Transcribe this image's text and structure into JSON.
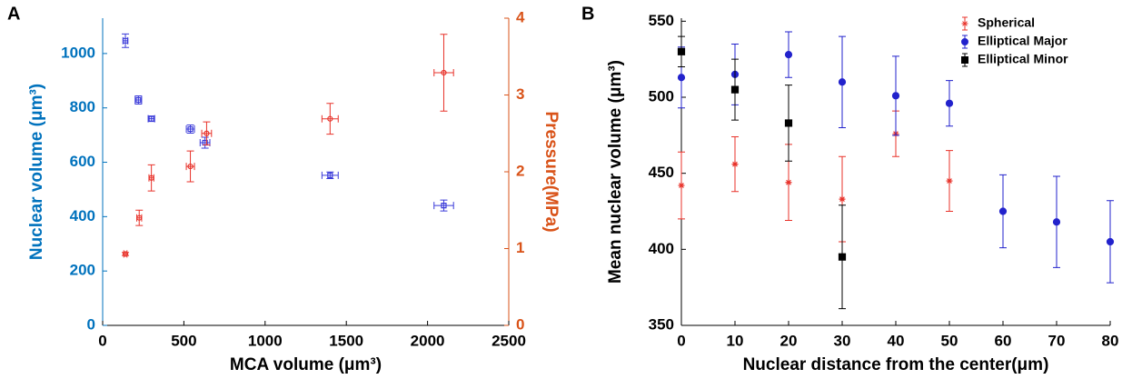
{
  "chart_data": [
    {
      "type": "scatter",
      "panel": "A",
      "xlabel": "MCA volume (μm³)",
      "ylabel": "Nuclear volume (μm³)",
      "y2label": "Pressure(MPa)",
      "xlim": [
        0,
        2500
      ],
      "xticks": [
        0,
        500,
        1000,
        1500,
        2000,
        2500
      ],
      "ylim": [
        0,
        1130
      ],
      "yticks": [
        0,
        200,
        400,
        600,
        800,
        1000
      ],
      "y2lim": [
        0,
        4
      ],
      "y2ticks": [
        0,
        1,
        2,
        3,
        4
      ],
      "ycolor": "#0072bd",
      "y2color": "#d95319",
      "series": [
        {
          "color": "#3b3bd9",
          "marker": "s",
          "filled": false,
          "x": [
            140,
            220,
            300,
            540,
            630,
            1400,
            2100
          ],
          "xerr": [
            15,
            20,
            20,
            25,
            30,
            50,
            60
          ],
          "values": [
            1047,
            829,
            760,
            722,
            672,
            552,
            441
          ],
          "yerr": [
            25,
            15,
            10,
            15,
            20,
            12,
            20
          ]
        },
        {
          "color": "#e8322a",
          "marker": "o",
          "filled": false,
          "axis": "y2",
          "x": [
            140,
            225,
            300,
            540,
            640,
            1400,
            2100
          ],
          "xerr": [
            10,
            15,
            15,
            25,
            30,
            50,
            60
          ],
          "values": [
            0.93,
            1.4,
            1.92,
            2.07,
            2.5,
            2.69,
            3.29
          ],
          "yerr": [
            0.02,
            0.1,
            0.17,
            0.2,
            0.15,
            0.2,
            0.5
          ]
        }
      ]
    },
    {
      "type": "scatter",
      "panel": "B",
      "xlabel": "Nuclear distance from the center(μm)",
      "ylabel": "Mean nuclear volume (μm³)",
      "xlim": [
        0,
        80
      ],
      "xticks": [
        0,
        10,
        20,
        30,
        40,
        50,
        60,
        70,
        80
      ],
      "ylim": [
        350,
        552
      ],
      "yticks": [
        350,
        400,
        450,
        500,
        550
      ],
      "legend": "upper right",
      "series": [
        {
          "name": "Spherical",
          "color": "#e8322a",
          "marker": "*",
          "filled": true,
          "x": [
            0,
            10,
            20,
            30,
            40,
            50
          ],
          "values": [
            442,
            456,
            444,
            433,
            476,
            445
          ],
          "yerr": [
            22,
            18,
            25,
            28,
            15,
            20
          ]
        },
        {
          "name": "Elliptical Major",
          "color": "#2222cc",
          "marker": "o",
          "filled": true,
          "x": [
            0,
            10,
            20,
            30,
            40,
            50,
            60,
            70,
            80
          ],
          "values": [
            513,
            515,
            528,
            510,
            501,
            496,
            425,
            418,
            405
          ],
          "yerr": [
            20,
            20,
            15,
            30,
            26,
            15,
            24,
            30,
            27
          ]
        },
        {
          "name": "Elliptical Minor",
          "color": "#000000",
          "marker": "s",
          "filled": true,
          "x": [
            0,
            10,
            20,
            30
          ],
          "values": [
            530,
            505,
            483,
            395
          ],
          "yerr": [
            10,
            20,
            25,
            34
          ]
        }
      ]
    }
  ]
}
